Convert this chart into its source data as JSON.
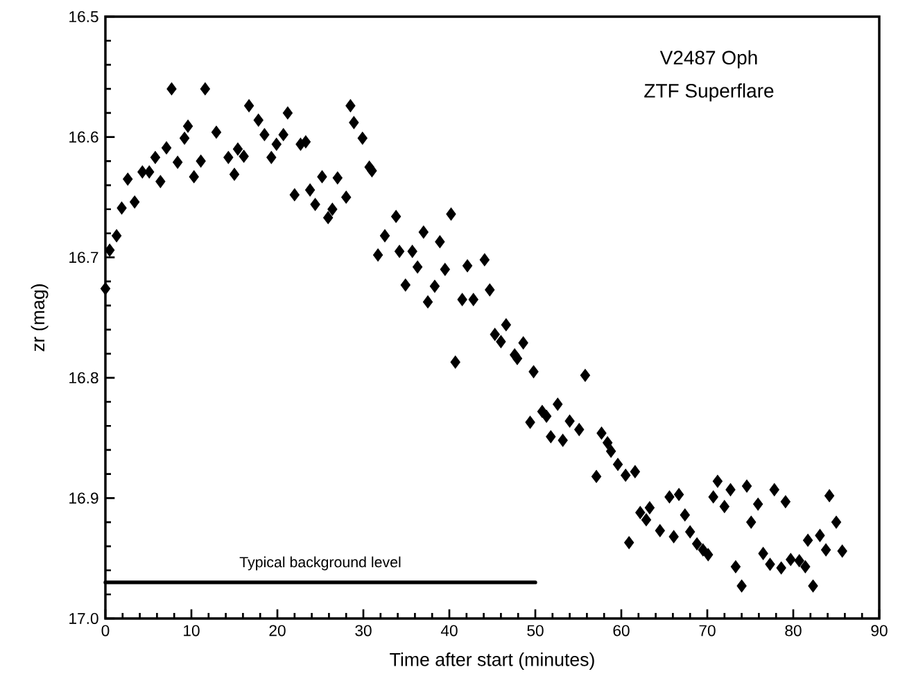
{
  "chart_data": {
    "type": "scatter",
    "xlabel": "Time after start (minutes)",
    "ylabel": "zr  (mag)",
    "xlim": [
      0,
      90
    ],
    "xticks": [
      0,
      10,
      20,
      30,
      40,
      50,
      60,
      70,
      80,
      90
    ],
    "ylim": [
      17.0,
      16.5
    ],
    "yticks": [
      {
        "value": 16.5,
        "label": "16.5"
      },
      {
        "value": 16.6,
        "label": "16.6"
      },
      {
        "value": 16.7,
        "label": "16.7"
      },
      {
        "value": 16.8,
        "label": "16.8"
      },
      {
        "value": 16.9,
        "label": "16.9"
      },
      {
        "value": 17.0,
        "label": "17.0"
      }
    ],
    "grid": false,
    "annotations": [
      "V2487 Oph",
      "ZTF Superflare",
      {
        "text": "Typical background level",
        "x": 25,
        "y": 16.97
      }
    ],
    "series": [
      {
        "color": "#000000",
        "marker": "diamond",
        "x": [
          0.0,
          0.5,
          1.3,
          1.9,
          2.6,
          3.4,
          4.3,
          5.1,
          5.8,
          6.4,
          7.1,
          7.7,
          8.4,
          9.2,
          9.6,
          10.3,
          11.1,
          11.6,
          12.9,
          14.3,
          15.0,
          15.4,
          16.1,
          16.7,
          17.8,
          18.5,
          19.3,
          19.9,
          20.7,
          21.2,
          22.0,
          22.7,
          23.3,
          23.8,
          24.4,
          25.2,
          25.9,
          26.4,
          27.0,
          28.0,
          28.5,
          28.9,
          29.9,
          30.7,
          31.0,
          31.7,
          32.5,
          33.8,
          34.2,
          34.9,
          35.7,
          36.3,
          37.0,
          37.5,
          38.3,
          38.9,
          39.5,
          40.2,
          40.7,
          41.5,
          42.1,
          42.8,
          44.1,
          44.7,
          45.3,
          46.0,
          46.6,
          47.6,
          47.9,
          48.6,
          49.4,
          49.8,
          50.8,
          51.3,
          51.8,
          52.6,
          53.2,
          54.0,
          55.1,
          55.8,
          57.1,
          57.7,
          58.4,
          58.8,
          59.6,
          60.5,
          60.9,
          61.6,
          62.2,
          62.9,
          63.3,
          64.5,
          65.6,
          66.1,
          66.7,
          67.4,
          68.0,
          68.8,
          69.5,
          70.1,
          70.7,
          71.2,
          72.0,
          72.7,
          73.3,
          74.0,
          74.6,
          75.1,
          75.9,
          76.5,
          77.3,
          77.8,
          78.6,
          79.1,
          79.7,
          80.7,
          81.4,
          81.7,
          82.3,
          83.1,
          83.8,
          84.2,
          85.0,
          85.7
        ],
        "values": [
          16.726,
          16.694,
          16.682,
          16.659,
          16.635,
          16.654,
          16.629,
          16.629,
          16.617,
          16.637,
          16.609,
          16.56,
          16.621,
          16.601,
          16.591,
          16.633,
          16.62,
          16.56,
          16.596,
          16.617,
          16.631,
          16.61,
          16.616,
          16.574,
          16.586,
          16.598,
          16.617,
          16.606,
          16.598,
          16.58,
          16.648,
          16.606,
          16.604,
          16.644,
          16.656,
          16.633,
          16.667,
          16.66,
          16.634,
          16.65,
          16.574,
          16.588,
          16.601,
          16.625,
          16.628,
          16.698,
          16.682,
          16.666,
          16.695,
          16.723,
          16.695,
          16.708,
          16.679,
          16.737,
          16.724,
          16.687,
          16.71,
          16.664,
          16.787,
          16.735,
          16.707,
          16.735,
          16.702,
          16.727,
          16.764,
          16.77,
          16.756,
          16.781,
          16.784,
          16.771,
          16.837,
          16.795,
          16.828,
          16.832,
          16.849,
          16.822,
          16.852,
          16.836,
          16.843,
          16.798,
          16.882,
          16.846,
          16.854,
          16.861,
          16.872,
          16.881,
          16.937,
          16.878,
          16.912,
          16.918,
          16.908,
          16.927,
          16.899,
          16.932,
          16.897,
          16.914,
          16.928,
          16.938,
          16.943,
          16.947,
          16.899,
          16.886,
          16.907,
          16.893,
          16.957,
          16.973,
          16.89,
          16.92,
          16.905,
          16.946,
          16.955,
          16.893,
          16.958,
          16.903,
          16.951,
          16.952,
          16.957,
          16.935,
          16.973,
          16.931,
          16.943,
          16.898,
          16.92,
          16.944
        ]
      },
      {
        "type": "line",
        "color": "#000000",
        "marker": "none",
        "line_style": "solid",
        "x": [
          0,
          50
        ],
        "values": [
          16.97,
          16.97
        ]
      }
    ]
  }
}
